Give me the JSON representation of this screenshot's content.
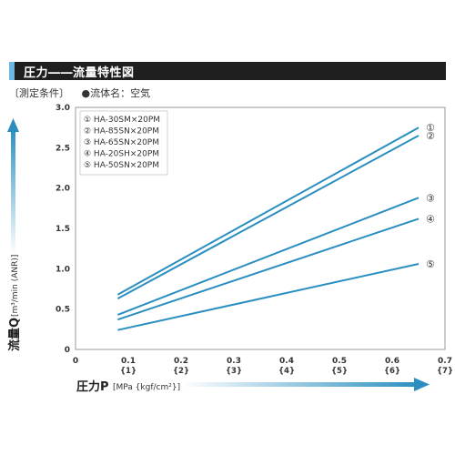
{
  "header": {
    "title": "圧力――流量特性図"
  },
  "conditions": {
    "label": "〔測定条件〕",
    "fluid": "●流体名：空気"
  },
  "chart_data": {
    "type": "line",
    "title": "圧力――流量特性図",
    "xlabel": "圧力P",
    "xunit": "[MPa {kgf/cm²}]",
    "ylabel": "流量Q",
    "yunit": "[m³/min (ANR)]",
    "xlim": [
      0,
      0.7
    ],
    "ylim": [
      0,
      3.0
    ],
    "x_ticks": [
      "0",
      "0.1",
      "0.2",
      "0.3",
      "0.4",
      "0.5",
      "0.6",
      "0.7"
    ],
    "x_sub_ticks": [
      "{1}",
      "{2}",
      "{3}",
      "{4}",
      "{5}",
      "{6}",
      "{7}"
    ],
    "y_ticks": [
      "0",
      "0.5",
      "1.0",
      "1.5",
      "2.0",
      "2.5",
      "3.0"
    ],
    "legend": [
      "① HA-30SM×20PM",
      "② HA-85SN×20PM",
      "③ HA-65SN×20PM",
      "④ HA-20SH×20PM",
      "⑤ HA-50SN×20PM"
    ],
    "series": [
      {
        "label": "①",
        "x": [
          0.08,
          0.65
        ],
        "y": [
          0.68,
          2.75
        ]
      },
      {
        "label": "②",
        "x": [
          0.08,
          0.65
        ],
        "y": [
          0.63,
          2.65
        ]
      },
      {
        "label": "③",
        "x": [
          0.08,
          0.65
        ],
        "y": [
          0.43,
          1.88
        ]
      },
      {
        "label": "④",
        "x": [
          0.08,
          0.65
        ],
        "y": [
          0.37,
          1.62
        ]
      },
      {
        "label": "⑤",
        "x": [
          0.08,
          0.65
        ],
        "y": [
          0.24,
          1.06
        ]
      }
    ],
    "grid": false,
    "legend_position": "top-left",
    "line_color": "#2a8fc0"
  }
}
